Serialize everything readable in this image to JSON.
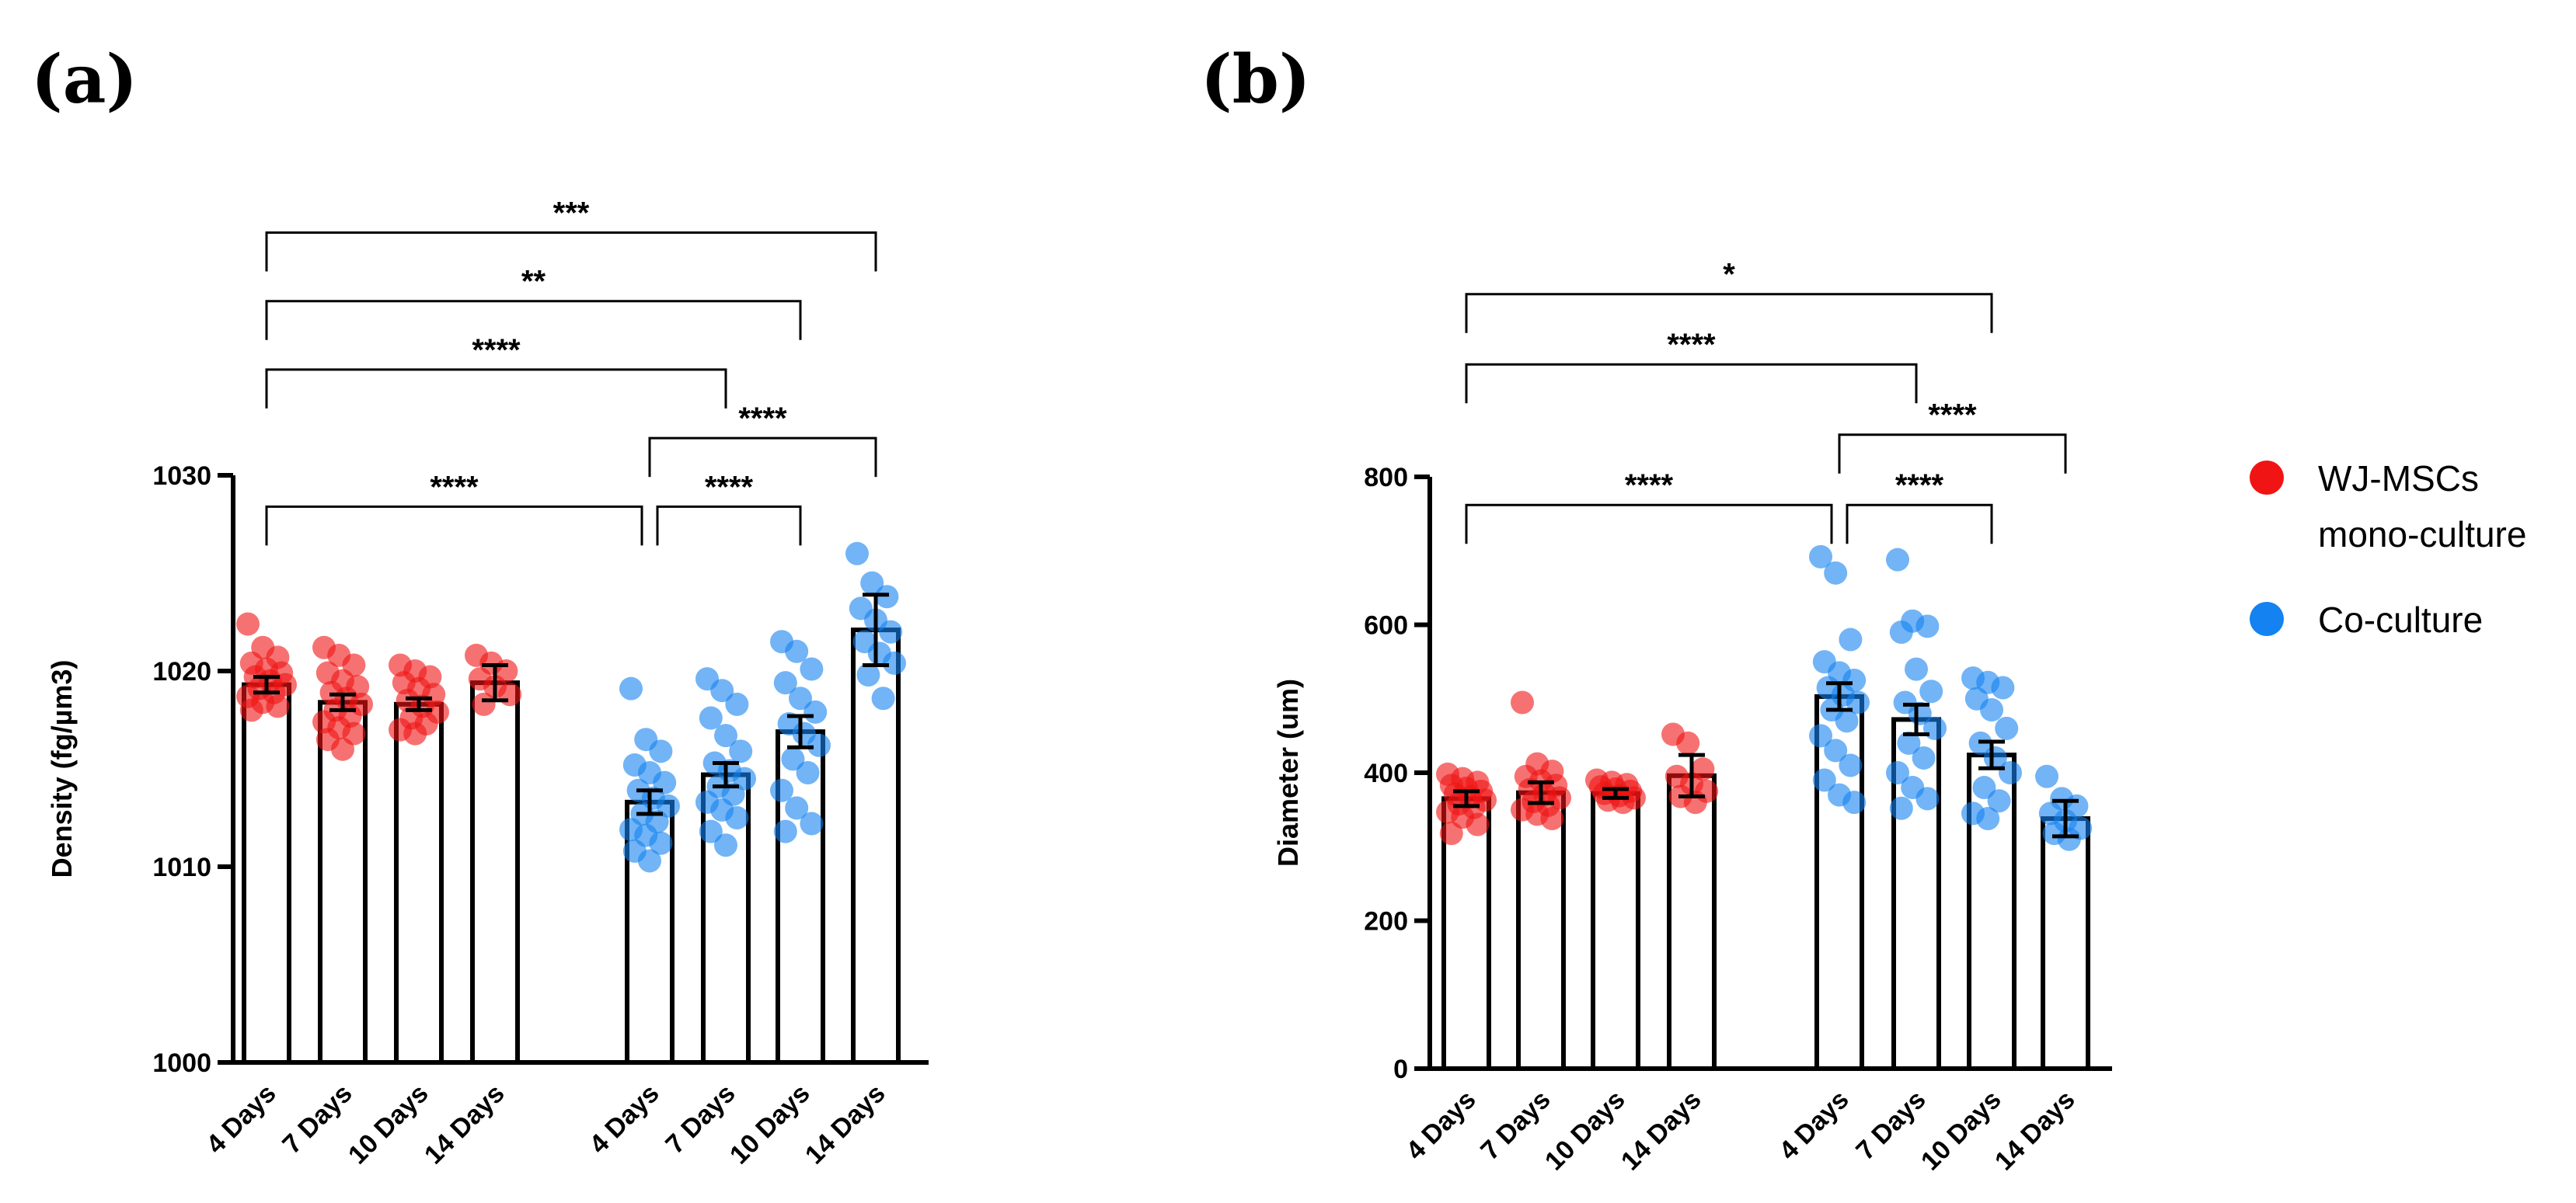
{
  "colors": {
    "mono": "#f01414",
    "co": "#1482f0",
    "axis": "#000000"
  },
  "legend": {
    "items": [
      {
        "label_line1": "WJ-MSCs",
        "label_line2": "mono-culture",
        "color": "#f01414"
      },
      {
        "label_line1": "Co-culture",
        "label_line2": "",
        "color": "#1482f0"
      }
    ]
  },
  "chart_data": [
    {
      "panel": "(a)",
      "type": "bar",
      "ylabel": "Density (fg/µm3)",
      "ylim": [
        1000,
        1030
      ],
      "yticks": [
        1000,
        1010,
        1020,
        1030
      ],
      "categories": [
        "4 Days",
        "7 Days",
        "10 Days",
        "14 Days",
        "4 Days",
        "7 Days",
        "10 Days",
        "14 Days"
      ],
      "series": [
        {
          "name": "WJ-MSCs mono-culture",
          "color": "mono",
          "means": [
            1019.3,
            1018.4,
            1018.3,
            1019.4
          ],
          "errors": [
            0.4,
            0.4,
            0.3,
            0.9
          ],
          "points": [
            [
              1022.4,
              1021.2,
              1020.7,
              1020.4,
              1020.1,
              1019.9,
              1019.7,
              1019.5,
              1019.3,
              1019.1,
              1018.9,
              1018.7,
              1018.4,
              1018.2,
              1018.0
            ],
            [
              1021.2,
              1020.8,
              1020.3,
              1019.9,
              1019.5,
              1019.2,
              1018.9,
              1018.6,
              1018.3,
              1018.0,
              1017.7,
              1017.4,
              1017.1,
              1016.8,
              1016.5,
              1016.0
            ],
            [
              1020.3,
              1020.0,
              1019.7,
              1019.4,
              1019.1,
              1018.8,
              1018.5,
              1018.2,
              1017.9,
              1017.6,
              1017.3,
              1017.0,
              1016.8
            ],
            [
              1020.8,
              1020.4,
              1020.0,
              1019.6,
              1019.2,
              1018.8,
              1018.3
            ]
          ]
        },
        {
          "name": "Co-culture",
          "color": "co",
          "means": [
            1013.3,
            1014.7,
            1016.9,
            1022.1
          ],
          "errors": [
            0.6,
            0.6,
            0.8,
            1.8
          ],
          "points": [
            [
              1019.1,
              1016.5,
              1015.9,
              1015.2,
              1014.8,
              1014.3,
              1013.9,
              1013.5,
              1013.1,
              1012.7,
              1012.3,
              1011.9,
              1011.6,
              1011.2,
              1010.8,
              1010.3
            ],
            [
              1019.6,
              1019.0,
              1018.3,
              1017.6,
              1016.7,
              1015.9,
              1015.3,
              1014.9,
              1014.5,
              1014.1,
              1013.7,
              1013.3,
              1012.9,
              1012.5,
              1011.8,
              1011.1
            ],
            [
              1021.5,
              1021.0,
              1020.1,
              1019.4,
              1018.6,
              1017.9,
              1017.3,
              1016.8,
              1016.2,
              1015.5,
              1014.8,
              1013.9,
              1013.0,
              1012.2,
              1011.8
            ],
            [
              1026.0,
              1024.5,
              1023.8,
              1023.2,
              1022.6,
              1022.0,
              1021.5,
              1020.9,
              1020.4,
              1019.8,
              1018.6
            ]
          ]
        }
      ],
      "comparisons": [
        {
          "from": 0,
          "to": 7,
          "y": 1042.4,
          "label": "***"
        },
        {
          "from": 0,
          "to": 6,
          "y": 1038.9,
          "label": "**"
        },
        {
          "from": 0,
          "to": 5,
          "y": 1035.4,
          "label": "****"
        },
        {
          "from": 4,
          "to": 7,
          "y": 1031.9,
          "label": "****"
        },
        {
          "from": 0,
          "to": 4,
          "y": 1028.4,
          "label": "****"
        },
        {
          "from": 4,
          "to": 6,
          "y": 1028.4,
          "label": "****"
        }
      ]
    },
    {
      "panel": "(b)",
      "type": "bar",
      "ylabel": "Diameter (um)",
      "ylim": [
        0,
        800
      ],
      "yticks": [
        0,
        200,
        400,
        600,
        800
      ],
      "categories": [
        "4 Days",
        "7 Days",
        "10 Days",
        "14 Days",
        "4 Days",
        "7 Days",
        "10 Days",
        "14 Days"
      ],
      "series": [
        {
          "name": "WJ-MSCs mono-culture",
          "color": "mono",
          "means": [
            365,
            373,
            372,
            396
          ],
          "errors": [
            10,
            14,
            6,
            28
          ],
          "points": [
            [
              398,
              392,
              387,
              383,
              379,
              375,
              371,
              367,
              363,
              358,
              353,
              347,
              340,
              330,
              318
            ],
            [
              495,
              412,
              402,
              395,
              389,
              383,
              377,
              371,
              366,
              361,
              356,
              350,
              344,
              338
            ],
            [
              390,
              387,
              384,
              381,
              378,
              375,
              372,
              369,
              366,
              363,
              360
            ],
            [
              452,
              440,
              405,
              395,
              385,
              375,
              368,
              360
            ]
          ]
        },
        {
          "name": "Co-culture",
          "color": "co",
          "means": [
            503,
            472,
            424,
            338
          ],
          "errors": [
            18,
            20,
            18,
            24
          ],
          "points": [
            [
              692,
              670,
              580,
              550,
              535,
              525,
              515,
              505,
              495,
              485,
              470,
              450,
              430,
              410,
              390,
              370,
              360
            ],
            [
              688,
              605,
              598,
              590,
              540,
              510,
              495,
              480,
              460,
              440,
              420,
              400,
              380,
              365,
              352
            ],
            [
              528,
              522,
              515,
              500,
              485,
              460,
              440,
              420,
              400,
              380,
              362,
              345,
              338
            ],
            [
              395,
              365,
              355,
              345,
              335,
              325,
              318,
              310
            ]
          ]
        }
      ],
      "comparisons": [
        {
          "from": 0,
          "to": 6,
          "y": 1047,
          "label": "*"
        },
        {
          "from": 0,
          "to": 5,
          "y": 952,
          "label": "****"
        },
        {
          "from": 4,
          "to": 7,
          "y": 857,
          "label": "****"
        },
        {
          "from": 0,
          "to": 4,
          "y": 762,
          "label": "****"
        },
        {
          "from": 4,
          "to": 6,
          "y": 762,
          "label": "****"
        }
      ]
    }
  ]
}
